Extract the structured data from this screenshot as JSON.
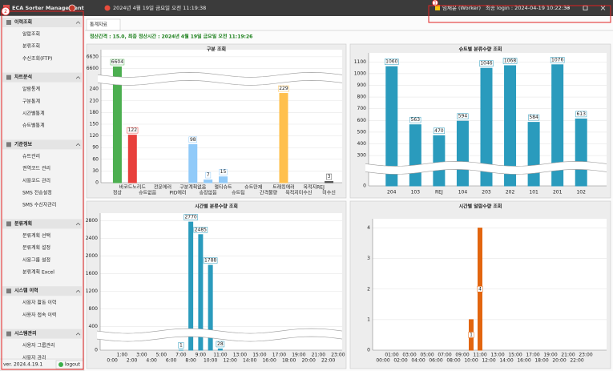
{
  "titlebar": {
    "app": "ECA Sorter Management",
    "datetime": "2024년 4월 19일 금요일 오전 11:19:38",
    "user": "임채윤 (Worker)",
    "login": "최종 login : 2024-04-19 10:22:33"
  },
  "annotations": [
    "1",
    "2"
  ],
  "sidebar": {
    "sections": [
      {
        "title": "이력조회",
        "items": [
          "알람조회",
          "분류조회",
          "수신조회(FTP)"
        ]
      },
      {
        "title": "차트분석",
        "items": [
          "알람통계",
          "구분통계",
          "시간별통계",
          "슈트별통계"
        ]
      },
      {
        "title": "기준정보",
        "items": [
          "슈트관리",
          "권역코드 관리",
          "사용코드 관리",
          "SMS 전송설정",
          "SMS 수신자관리"
        ]
      },
      {
        "title": "분류계획",
        "items": [
          "분류계획 선택",
          "분류계획 설정",
          "사용그룹 설정",
          "분류계획 Excel"
        ]
      },
      {
        "title": "시스템 이력",
        "items": [
          "사용자 활동 이력",
          "사용자 접속 이력"
        ]
      },
      {
        "title": "시스템관리",
        "items": [
          "사용자 그룹관리",
          "사용자 관리"
        ]
      }
    ],
    "version": "ver. 2024.4.19.1",
    "logout": "logout"
  },
  "tab": "통계자료",
  "status": "정산간격 : 15.0, 최종 정산시간 : 2024년 4월 19일 금요일 오전 11:19:26",
  "charts": [
    {
      "type": "bar",
      "title": "구분 조회",
      "categories": [
        "정상",
        "바코드노리드",
        "슈트없음",
        "전문에러",
        "PID에러",
        "구분계획없음",
        "송장없음",
        "멀티슈트",
        "슈트팀",
        "슈트만재",
        "간격불량",
        "트래킹에러",
        "목적지미수신",
        "목적지REJ",
        "미수신"
      ],
      "values": [
        6604,
        122,
        0,
        0,
        0,
        98,
        7,
        15,
        0,
        0,
        0,
        229,
        0,
        0,
        3
      ],
      "colors": [
        "#4caf50",
        "#e8403c",
        "#90caf9",
        "#90caf9",
        "#90caf9",
        "#90caf9",
        "#90caf9",
        "#90caf9",
        "#90caf9",
        "#90caf9",
        "#90caf9",
        "#ffc04d",
        "#90caf9",
        "#90caf9",
        "#555555"
      ],
      "ylim": [
        0,
        6640
      ],
      "ybreak": [
        250,
        6590
      ],
      "yticks": [
        0,
        30,
        60,
        90,
        120,
        150,
        180,
        210,
        240,
        6600,
        6630
      ],
      "grid": true
    },
    {
      "type": "bar",
      "title": "슈트별 분류수량 조회",
      "categories": [
        "204",
        "103",
        "REJ",
        "104",
        "203",
        "202",
        "101",
        "201",
        "102"
      ],
      "values": [
        1060,
        563,
        470,
        594,
        1046,
        1068,
        584,
        1076,
        613
      ],
      "color": "#2a9bbd",
      "ylim": [
        0,
        1150
      ],
      "ybreak": [
        100,
        250
      ],
      "yticks": [
        0,
        300,
        400,
        500,
        600,
        700,
        800,
        900,
        1000,
        1100
      ],
      "grid": true
    },
    {
      "type": "bar",
      "title": "시간별 분류수량 조회",
      "categories": [
        "0:00",
        "1:00",
        "2:00",
        "3:00",
        "4:00",
        "5:00",
        "6:00",
        "7:00",
        "8:00",
        "9:00",
        "10:00",
        "11:00",
        "12:00",
        "13:00",
        "14:00",
        "15:00",
        "16:00",
        "17:00",
        "18:00",
        "19:00",
        "20:00",
        "21:00",
        "22:00",
        "23:00"
      ],
      "values": [
        0,
        0,
        0,
        0,
        0,
        0,
        0,
        1,
        2770,
        2485,
        1788,
        28,
        0,
        0,
        0,
        0,
        0,
        0,
        0,
        0,
        0,
        0,
        0,
        0
      ],
      "color": "#2a9bbd",
      "ylim": [
        0,
        2900
      ],
      "ybreak": [
        200,
        350
      ],
      "yticks": [
        0,
        400,
        800,
        1200,
        1600,
        2000,
        2400,
        2800
      ],
      "grid": true
    },
    {
      "type": "bar",
      "title": "시간별 알람수량 조회",
      "categories": [
        "00:00",
        "01:00",
        "02:00",
        "03:00",
        "04:00",
        "05:00",
        "06:00",
        "07:00",
        "08:00",
        "09:00",
        "10:00",
        "11:00",
        "12:00",
        "13:00",
        "14:00",
        "15:00",
        "16:00",
        "17:00",
        "18:00",
        "19:00",
        "20:00",
        "21:00",
        "22:00",
        "23:00"
      ],
      "values": [
        0,
        0,
        0,
        0,
        0,
        0,
        0,
        0,
        0,
        0,
        1,
        4,
        0,
        0,
        0,
        0,
        0,
        0,
        0,
        0,
        0,
        0,
        0,
        0
      ],
      "color": "#e2650f",
      "ylim": [
        0,
        4.2
      ],
      "yticks": [
        0,
        1,
        2,
        3,
        4
      ],
      "grid": true
    }
  ]
}
